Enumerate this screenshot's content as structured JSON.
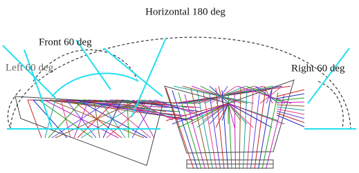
{
  "labels": {
    "horizontal": "Horizontal 180 deg",
    "front": "Front 60 deg",
    "left": "Left 60 deg",
    "right": "Right 60 deg"
  }
}
